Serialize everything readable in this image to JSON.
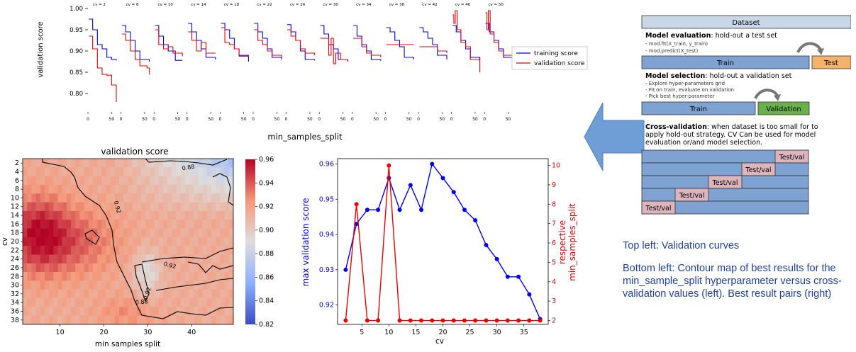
{
  "chart_data": [
    {
      "type": "line",
      "ylabel": "validation score",
      "xlabel": "min_samples_split",
      "ylim": [
        0.76,
        1.0
      ],
      "yticks": [
        "1.00",
        "0.95",
        "0.90",
        "0.85",
        "0.80"
      ],
      "panel_xticks": [
        "0",
        "50"
      ],
      "legend": [
        "training score",
        "validation score"
      ],
      "legend_position": "right",
      "colors": {
        "training": "#0000ee",
        "validation": "#ee0000"
      },
      "panels": [
        {
          "title": "cv = 2",
          "train": [
            [
              2,
              0.975
            ],
            [
              10,
              0.95
            ],
            [
              20,
              0.915
            ],
            [
              30,
              0.905
            ],
            [
              40,
              0.885
            ],
            [
              50,
              0.88
            ],
            [
              60,
              0.878
            ]
          ],
          "val": [
            [
              2,
              0.935
            ],
            [
              10,
              0.905
            ],
            [
              20,
              0.86
            ],
            [
              30,
              0.845
            ],
            [
              40,
              0.843
            ],
            [
              50,
              0.82
            ],
            [
              60,
              0.78
            ]
          ]
        },
        {
          "title": "cv = 6",
          "train": [
            [
              2,
              0.96
            ],
            [
              10,
              0.945
            ],
            [
              20,
              0.925
            ],
            [
              30,
              0.9
            ],
            [
              40,
              0.88
            ],
            [
              60,
              0.875
            ]
          ],
          "val": [
            [
              2,
              0.94
            ],
            [
              10,
              0.925
            ],
            [
              20,
              0.9
            ],
            [
              30,
              0.88
            ],
            [
              40,
              0.865
            ],
            [
              55,
              0.86
            ],
            [
              60,
              0.845
            ]
          ]
        },
        {
          "title": "cv = 10",
          "train": [
            [
              2,
              0.96
            ],
            [
              10,
              0.935
            ],
            [
              20,
              0.915
            ],
            [
              30,
              0.9
            ],
            [
              45,
              0.878
            ],
            [
              60,
              0.878
            ]
          ],
          "val": [
            [
              2,
              0.95
            ],
            [
              10,
              0.915
            ],
            [
              20,
              0.905
            ],
            [
              30,
              0.91
            ],
            [
              40,
              0.895
            ],
            [
              60,
              0.888
            ]
          ]
        },
        {
          "title": "cv = 14",
          "train": [
            [
              2,
              0.965
            ],
            [
              10,
              0.945
            ],
            [
              20,
              0.925
            ],
            [
              30,
              0.905
            ],
            [
              40,
              0.885
            ],
            [
              60,
              0.88
            ]
          ],
          "val": [
            [
              2,
              0.945
            ],
            [
              10,
              0.925
            ],
            [
              20,
              0.9
            ],
            [
              30,
              0.92
            ],
            [
              40,
              0.895
            ],
            [
              60,
              0.895
            ]
          ]
        },
        {
          "title": "cv = 18",
          "train": [
            [
              2,
              0.965
            ],
            [
              10,
              0.95
            ],
            [
              20,
              0.93
            ],
            [
              30,
              0.905
            ],
            [
              40,
              0.888
            ],
            [
              60,
              0.875
            ]
          ],
          "val": [
            [
              2,
              0.955
            ],
            [
              10,
              0.92
            ],
            [
              20,
              0.915
            ],
            [
              30,
              0.905
            ],
            [
              40,
              0.89
            ],
            [
              60,
              0.885
            ]
          ]
        },
        {
          "title": "cv = 22",
          "train": [
            [
              2,
              0.965
            ],
            [
              10,
              0.945
            ],
            [
              20,
              0.93
            ],
            [
              30,
              0.905
            ],
            [
              40,
              0.885
            ],
            [
              60,
              0.88
            ]
          ],
          "val": [
            [
              2,
              0.95
            ],
            [
              10,
              0.925
            ],
            [
              20,
              0.915
            ],
            [
              30,
              0.9
            ],
            [
              40,
              0.89
            ],
            [
              60,
              0.885
            ]
          ]
        },
        {
          "title": "cv = 26",
          "train": [
            [
              2,
              0.962
            ],
            [
              10,
              0.945
            ],
            [
              20,
              0.925
            ],
            [
              30,
              0.9
            ],
            [
              40,
              0.88
            ],
            [
              60,
              0.878
            ]
          ],
          "val": [
            [
              2,
              0.95
            ],
            [
              10,
              0.935
            ],
            [
              20,
              0.925
            ],
            [
              30,
              0.905
            ],
            [
              40,
              0.895
            ],
            [
              60,
              0.89
            ]
          ]
        },
        {
          "title": "cv = 30",
          "train": [
            [
              2,
              0.96
            ],
            [
              10,
              0.94
            ],
            [
              20,
              0.915
            ],
            [
              30,
              0.905
            ],
            [
              40,
              0.88
            ],
            [
              60,
              0.875
            ]
          ],
          "val": [
            [
              2,
              0.93
            ],
            [
              15,
              0.93
            ],
            [
              20,
              0.89
            ],
            [
              25,
              0.93
            ],
            [
              30,
              0.87
            ],
            [
              35,
              0.895
            ],
            [
              45,
              0.88
            ],
            [
              60,
              0.875
            ]
          ]
        },
        {
          "title": "cv = 34",
          "train": [
            [
              2,
              0.96
            ],
            [
              10,
              0.935
            ],
            [
              20,
              0.915
            ],
            [
              30,
              0.9
            ],
            [
              40,
              0.88
            ],
            [
              60,
              0.877
            ]
          ],
          "val": [
            [
              2,
              0.93
            ],
            [
              15,
              0.93
            ],
            [
              20,
              0.91
            ],
            [
              30,
              0.895
            ],
            [
              40,
              0.89
            ],
            [
              60,
              0.885
            ]
          ]
        },
        {
          "title": "cv = 38",
          "train": [
            [
              2,
              0.955
            ],
            [
              10,
              0.945
            ],
            [
              20,
              0.925
            ],
            [
              30,
              0.91
            ],
            [
              40,
              0.885
            ],
            [
              60,
              0.88
            ]
          ],
          "val": [
            [
              2,
              0.915
            ],
            [
              60,
              0.915
            ]
          ]
        },
        {
          "title": "cv = 42",
          "train": [
            [
              2,
              0.955
            ],
            [
              10,
              0.945
            ],
            [
              20,
              0.93
            ],
            [
              30,
              0.915
            ],
            [
              40,
              0.89
            ],
            [
              60,
              0.88
            ]
          ],
          "val": [
            [
              2,
              0.91
            ],
            [
              30,
              0.91
            ],
            [
              40,
              0.9
            ],
            [
              60,
              0.895
            ]
          ]
        },
        {
          "title": "cv = 46",
          "train": [
            [
              2,
              0.96
            ],
            [
              10,
              0.945
            ],
            [
              20,
              0.925
            ],
            [
              30,
              0.905
            ],
            [
              40,
              0.885
            ],
            [
              60,
              0.878
            ]
          ],
          "val": [
            [
              2,
              0.985
            ],
            [
              5,
              0.965
            ],
            [
              8,
              0.995
            ],
            [
              12,
              0.95
            ],
            [
              20,
              0.92
            ],
            [
              30,
              0.91
            ],
            [
              40,
              0.88
            ],
            [
              60,
              0.85
            ]
          ]
        },
        {
          "title": "cv = 50",
          "train": [
            [
              2,
              0.965
            ],
            [
              10,
              0.945
            ],
            [
              20,
              0.925
            ],
            [
              30,
              0.905
            ],
            [
              40,
              0.885
            ],
            [
              60,
              0.88
            ]
          ],
          "val": [
            [
              2,
              0.99
            ],
            [
              5,
              0.95
            ],
            [
              8,
              0.995
            ],
            [
              12,
              0.94
            ],
            [
              20,
              0.92
            ],
            [
              30,
              0.9
            ],
            [
              40,
              0.89
            ],
            [
              60,
              0.89
            ]
          ]
        }
      ]
    },
    {
      "type": "heatmap",
      "title": "validation score",
      "xlabel": "min samples split",
      "ylabel": "cv",
      "xticks": [
        "10",
        "20",
        "30",
        "40"
      ],
      "yticks": [
        "2",
        "4",
        "6",
        "8",
        "10",
        "12",
        "14",
        "16",
        "18",
        "20",
        "22",
        "24",
        "26",
        "28",
        "30",
        "32",
        "34",
        "36",
        "38"
      ],
      "colorbar": {
        "min": 0.82,
        "max": 0.96,
        "ticks": [
          "0.96",
          "0.94",
          "0.92",
          "0.90",
          "0.88",
          "0.86",
          "0.84",
          "0.82"
        ]
      },
      "contour_labels": [
        "0.88",
        "0.92",
        "0.92",
        "0.88",
        "0.92"
      ]
    },
    {
      "type": "line",
      "xlabel": "cv",
      "ylabel_left": "max validation score",
      "ylabel_right_line1": "respective",
      "ylabel_right_line2": "min_samples_split",
      "xticks": [
        "5",
        "10",
        "15",
        "20",
        "25",
        "30",
        "35"
      ],
      "yticks_left": [
        "0.96",
        "0.95",
        "0.94",
        "0.93",
        "0.92"
      ],
      "yticks_right": [
        "10",
        "9",
        "8",
        "7",
        "6",
        "5",
        "4",
        "3",
        "2"
      ],
      "colors": {
        "left": "#0000ee",
        "right": "#ee0000"
      },
      "x": [
        2,
        4,
        6,
        8,
        10,
        12,
        14,
        16,
        18,
        20,
        22,
        24,
        26,
        28,
        30,
        32,
        34,
        36,
        38
      ],
      "series": [
        {
          "axis": "left",
          "values": [
            0.93,
            0.943,
            0.947,
            0.947,
            0.956,
            0.947,
            0.954,
            0.947,
            0.96,
            0.956,
            0.952,
            0.947,
            0.944,
            0.937,
            0.933,
            0.928,
            0.928,
            0.923,
            0.916
          ]
        },
        {
          "axis": "right",
          "values": [
            2,
            8,
            2,
            2,
            10,
            2,
            2,
            2,
            2,
            2,
            2,
            2,
            2,
            2,
            2,
            2,
            2,
            2,
            2
          ]
        }
      ]
    }
  ],
  "diagram": {
    "dataset": "Dataset",
    "eval_title_bold": "Model evaluation",
    "eval_title_rest": ": hold-out a test set",
    "eval_lines": [
      "- mod.fit(X_train, y_train)",
      "- mod.predict(X_test)"
    ],
    "train": "Train",
    "test": "Test",
    "sel_title_bold": "Model selection",
    "sel_title_rest": ": hold-out a validation set",
    "sel_lines": [
      "- Explore hyper-parameters grid",
      "- Fit on train, evaluate on validation",
      "- Pick best hyper-parameter"
    ],
    "validation": "Validation",
    "cv_title_bold": "Cross-validation",
    "cv_lines": [
      ": when dataset is too small for to",
      "apply hold-out strategy. CV Can be used for model",
      "evaluation or/and model selection."
    ],
    "fold_label": "Test/val",
    "colors": {
      "dataset": "#c9d8e6",
      "train": "#7ea3d3",
      "test": "#f4b26b",
      "validation": "#6ab04c",
      "fold": "#dcb4bc",
      "arrow": "#6f9ed6"
    }
  },
  "notes": [
    "Top left: Validation curves",
    "Bottom left: Contour map of best results for the min_sample_split hyperparameter versus cross-validation values (left). Best result pairs (right)"
  ]
}
